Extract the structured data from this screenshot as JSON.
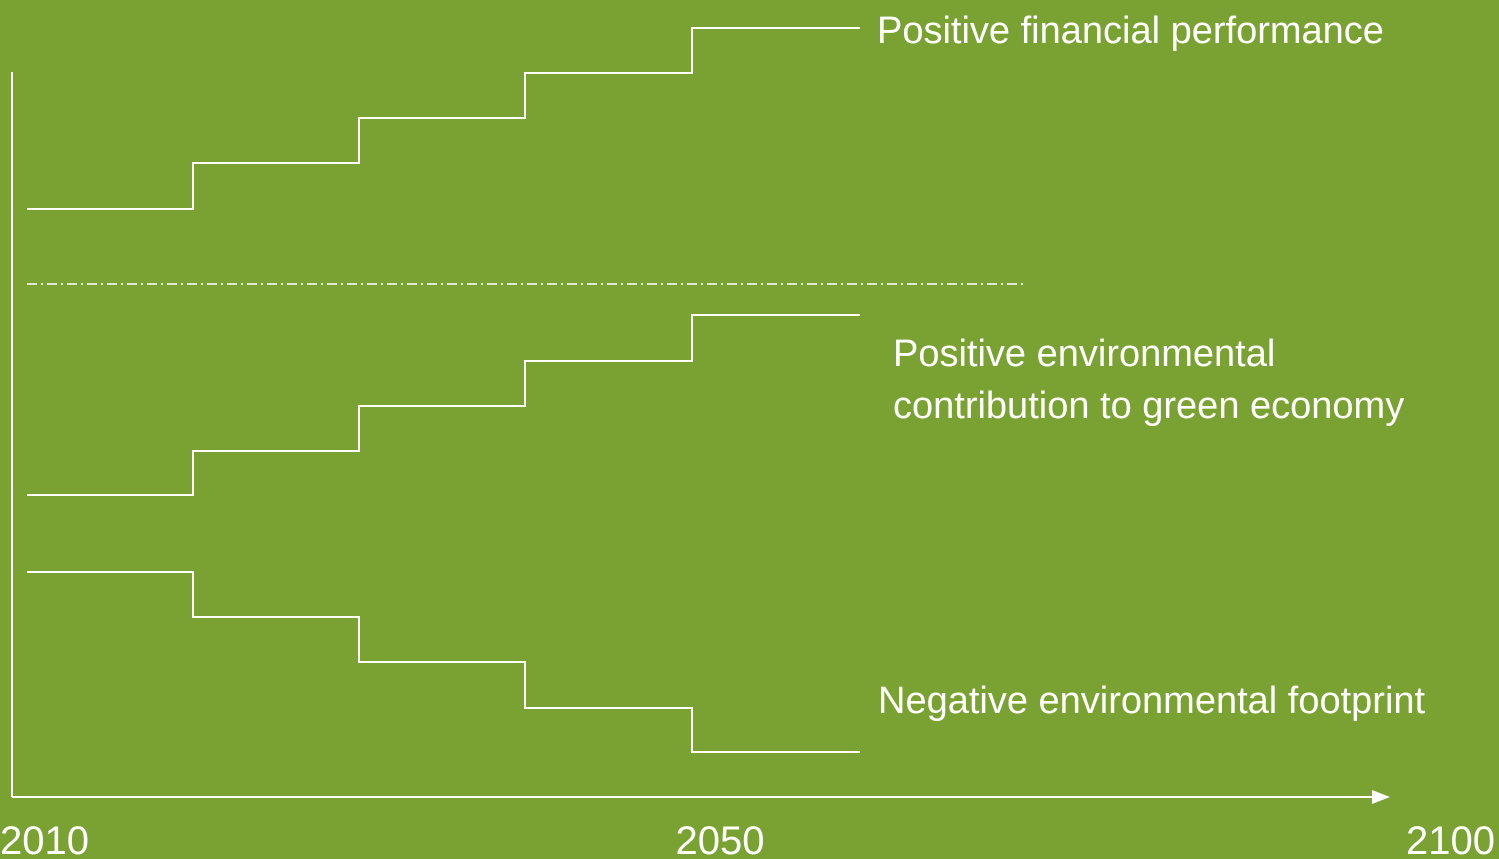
{
  "axis": {
    "labels": [
      "2010",
      "2050",
      "2100"
    ]
  },
  "curves": [
    {
      "label": [
        "Positive financial performance"
      ]
    },
    {
      "label": [
        "Positive environmental",
        "contribution to green economy"
      ]
    },
    {
      "label": [
        "Negative environmental footprint"
      ]
    }
  ]
}
